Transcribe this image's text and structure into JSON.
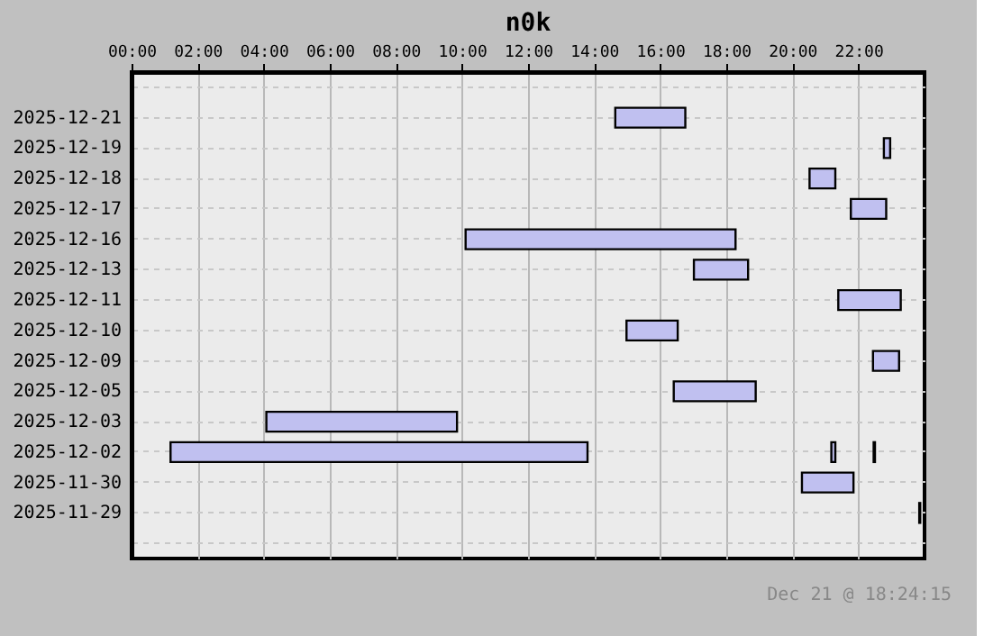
{
  "chart_data": {
    "type": "bar",
    "orientation": "horizontal",
    "title": "n0k",
    "categories": [
      null,
      "2025-12-21",
      "2025-12-19",
      "2025-12-18",
      "2025-12-17",
      "2025-12-16",
      "2025-12-13",
      "2025-12-11",
      "2025-12-10",
      "2025-12-09",
      "2025-12-05",
      "2025-12-03",
      "2025-12-02",
      "2025-11-30",
      "2025-11-29",
      null
    ],
    "series": [
      {
        "color": "#c0c0f0",
        "base": [
          null,
          14.64,
          22.77,
          20.52,
          21.77,
          10.11,
          17.02,
          21.39,
          14.98,
          22.44,
          16.41,
          4.08,
          1.18,
          20.29,
          23.84,
          null
        ],
        "values": [
          null,
          2.12,
          0.19,
          0.78,
          1.07,
          8.17,
          1.64,
          1.89,
          1.55,
          0.79,
          2.48,
          5.77,
          12.62,
          1.56,
          0.03,
          null
        ]
      },
      {
        "color": "#c0c0f0",
        "base": [
          null,
          null,
          null,
          null,
          null,
          null,
          null,
          null,
          null,
          null,
          null,
          null,
          21.18,
          null,
          null,
          null
        ],
        "values": [
          null,
          null,
          null,
          null,
          null,
          null,
          null,
          null,
          null,
          null,
          null,
          null,
          0.12,
          null,
          null,
          null
        ]
      },
      {
        "color": "#c0c0f0",
        "base": [
          null,
          null,
          null,
          null,
          null,
          null,
          null,
          null,
          null,
          null,
          null,
          null,
          22.46,
          null,
          null,
          null
        ],
        "values": [
          null,
          null,
          null,
          null,
          null,
          null,
          null,
          null,
          null,
          null,
          null,
          null,
          0.04,
          null,
          null,
          null
        ]
      }
    ],
    "xlim": [
      0,
      24
    ],
    "xticks": [
      {
        "value": 0,
        "label": "00:00"
      },
      {
        "value": 2,
        "label": "02:00"
      },
      {
        "value": 4,
        "label": "04:00"
      },
      {
        "value": 6,
        "label": "06:00"
      },
      {
        "value": 8,
        "label": "08:00"
      },
      {
        "value": 10,
        "label": "10:00"
      },
      {
        "value": 12,
        "label": "12:00"
      },
      {
        "value": 14,
        "label": "14:00"
      },
      {
        "value": 16,
        "label": "16:00"
      },
      {
        "value": 18,
        "label": "18:00"
      },
      {
        "value": 20,
        "label": "20:00"
      },
      {
        "value": 22,
        "label": "22:00"
      }
    ],
    "grid": true,
    "annotations": [
      "Dec 21 @ 18:24:15"
    ]
  }
}
